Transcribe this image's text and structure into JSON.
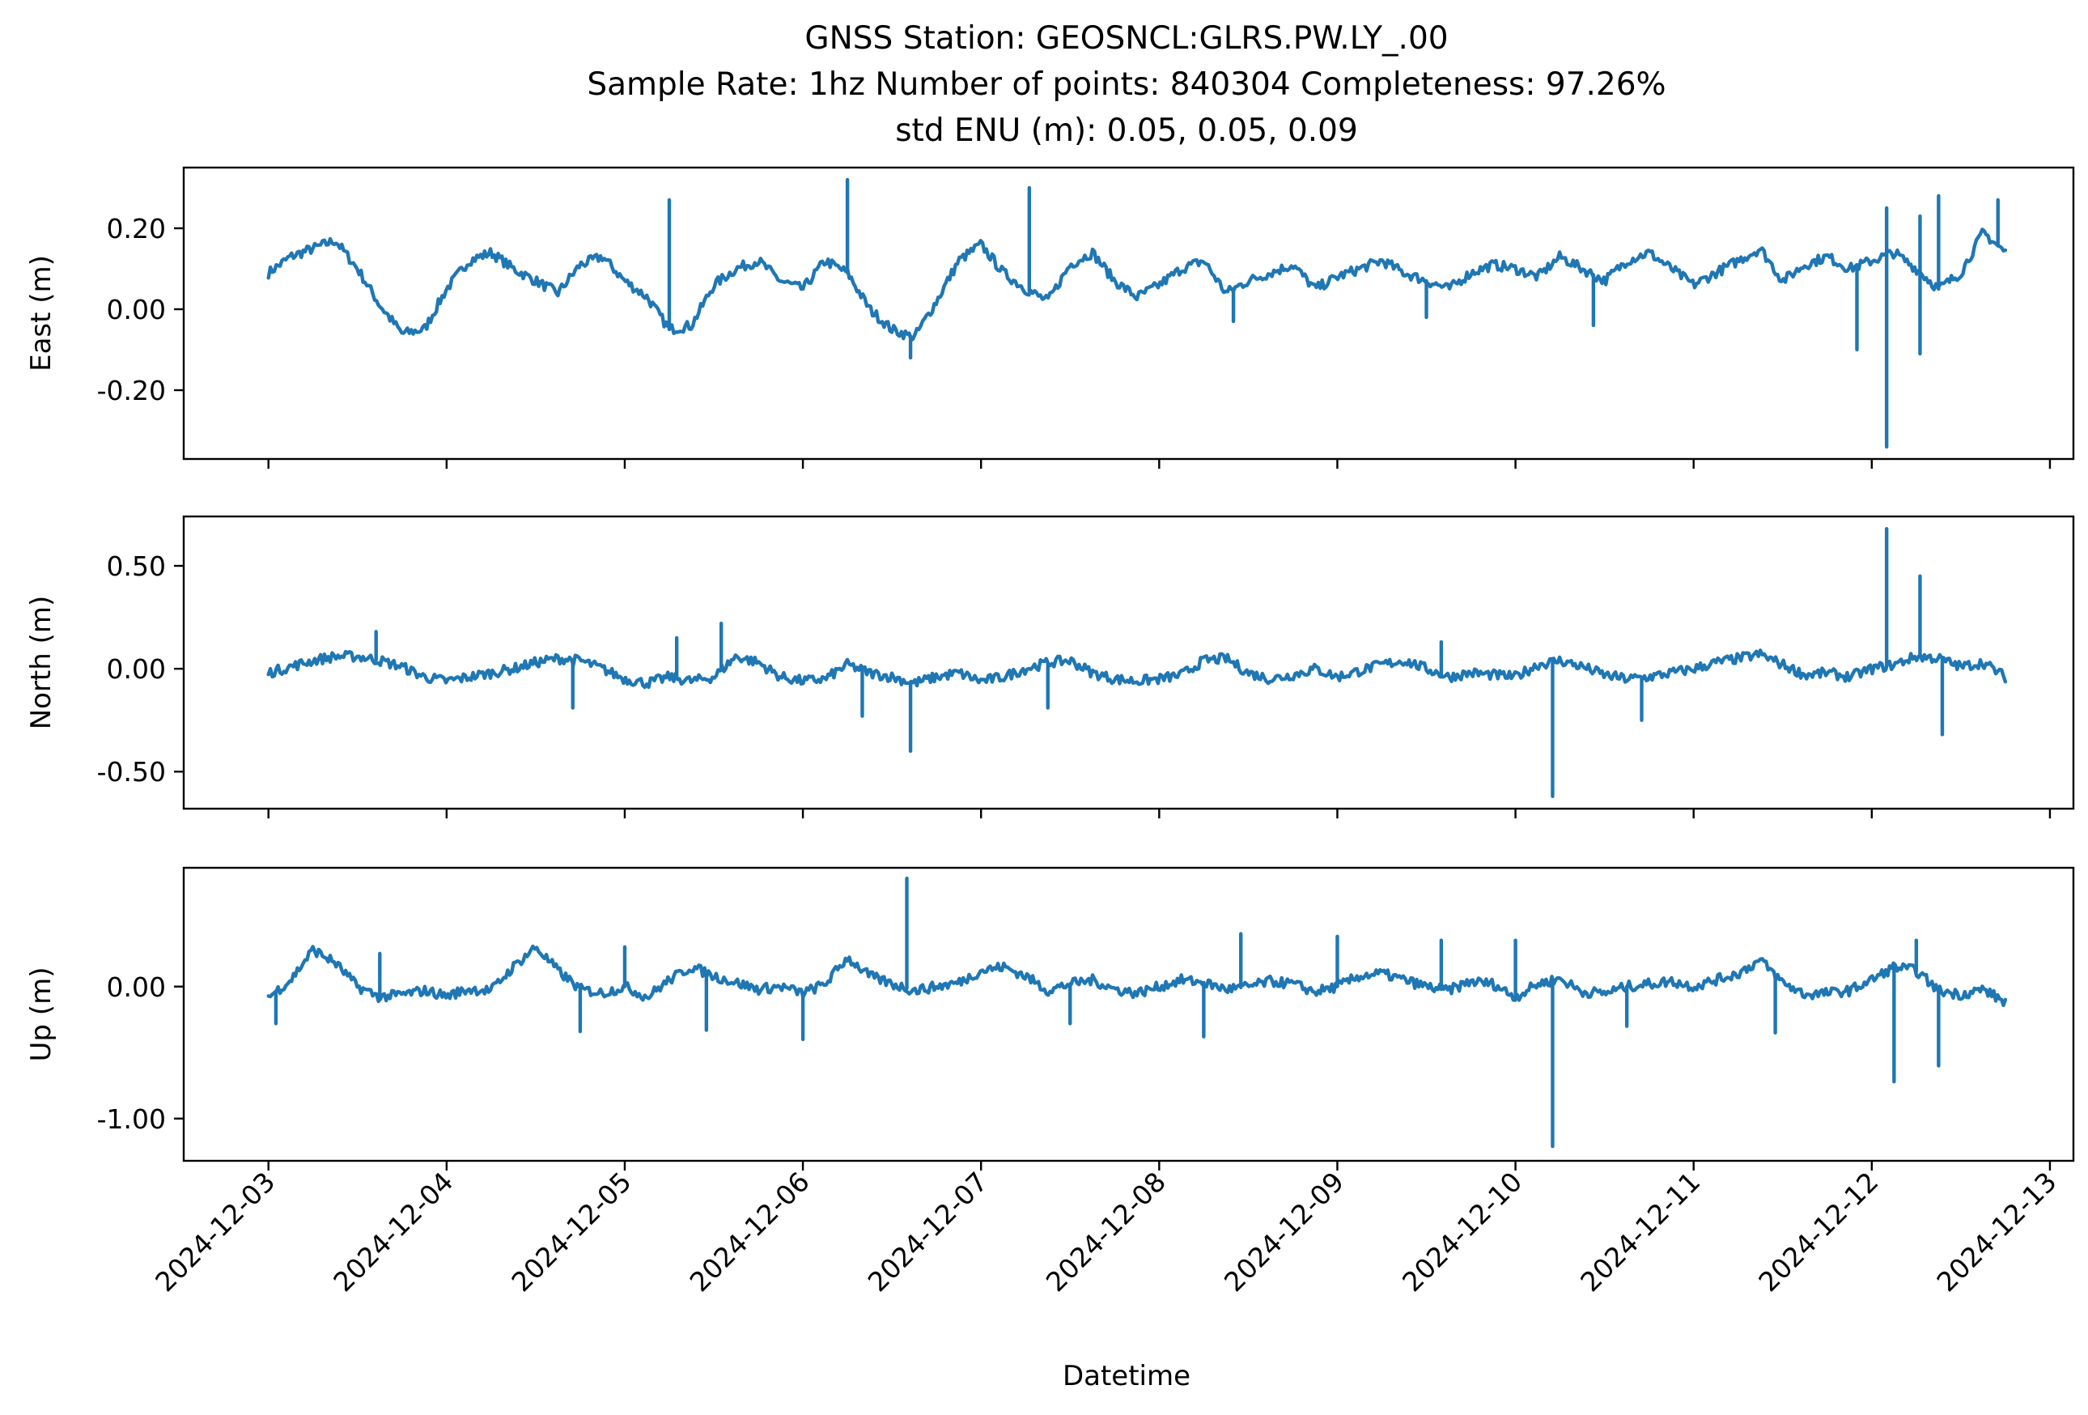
{
  "chart_data": [
    {
      "type": "line",
      "title": [
        "GNSS Station: GEOSNCL:GLRS.PW.LY_.00",
        "Sample Rate: 1hz   Number of points: 840304    Completeness:  97.26%",
        "std ENU (m):  0.05, 0.05, 0.09"
      ],
      "ylabel": "East (m)",
      "xlabel": "",
      "xlim": [
        "2024-12-02T12:35",
        "2024-12-13T03:10"
      ],
      "ylim": [
        -0.37,
        0.35
      ],
      "yticks": [
        0.2,
        0.0,
        -0.2
      ],
      "ytick_labels": [
        "0.20",
        "0.00",
        "-0.20"
      ],
      "grid": false,
      "series": [
        {
          "color": "#1f77b4",
          "x": [
            "2024-12-03T00:00",
            "2024-12-03T03:00",
            "2024-12-03T06:00",
            "2024-12-03T09:00",
            "2024-12-03T12:00",
            "2024-12-03T15:00",
            "2024-12-03T18:00",
            "2024-12-03T21:00",
            "2024-12-04T00:00",
            "2024-12-04T03:00",
            "2024-12-04T06:00",
            "2024-12-04T09:00",
            "2024-12-04T12:00",
            "2024-12-04T15:00",
            "2024-12-04T18:00",
            "2024-12-04T21:00",
            "2024-12-05T00:00",
            "2024-12-05T03:00",
            "2024-12-05T06:00",
            "2024-12-05T09:00",
            "2024-12-05T12:00",
            "2024-12-05T15:00",
            "2024-12-05T18:00",
            "2024-12-05T21:00",
            "2024-12-06T00:00",
            "2024-12-06T03:00",
            "2024-12-06T06:00",
            "2024-12-06T09:00",
            "2024-12-06T12:00",
            "2024-12-06T15:00",
            "2024-12-06T18:00",
            "2024-12-06T21:00",
            "2024-12-07T00:00",
            "2024-12-07T03:00",
            "2024-12-07T06:00",
            "2024-12-07T09:00",
            "2024-12-07T12:00",
            "2024-12-07T15:00",
            "2024-12-07T18:00",
            "2024-12-07T21:00",
            "2024-12-08T00:00",
            "2024-12-08T03:00",
            "2024-12-08T06:00",
            "2024-12-08T09:00",
            "2024-12-08T12:00",
            "2024-12-08T15:00",
            "2024-12-08T18:00",
            "2024-12-08T21:00",
            "2024-12-09T00:00",
            "2024-12-09T03:00",
            "2024-12-09T06:00",
            "2024-12-09T09:00",
            "2024-12-09T12:00",
            "2024-12-09T15:00",
            "2024-12-09T18:00",
            "2024-12-09T21:00",
            "2024-12-10T00:00",
            "2024-12-10T03:00",
            "2024-12-10T06:00",
            "2024-12-10T09:00",
            "2024-12-10T12:00",
            "2024-12-10T15:00",
            "2024-12-10T18:00",
            "2024-12-10T21:00",
            "2024-12-11T00:00",
            "2024-12-11T03:00",
            "2024-12-11T06:00",
            "2024-12-11T09:00",
            "2024-12-11T12:00",
            "2024-12-11T15:00",
            "2024-12-11T18:00",
            "2024-12-11T21:00",
            "2024-12-12T00:00",
            "2024-12-12T03:00",
            "2024-12-12T06:00",
            "2024-12-12T09:00",
            "2024-12-12T12:00",
            "2024-12-12T15:00",
            "2024-12-12T18:00"
          ],
          "y": [
            0.09,
            0.13,
            0.15,
            0.17,
            0.1,
            0.01,
            -0.06,
            -0.05,
            0.05,
            0.12,
            0.14,
            0.1,
            0.07,
            0.04,
            0.11,
            0.13,
            0.07,
            0.03,
            -0.05,
            -0.04,
            0.06,
            0.1,
            0.12,
            0.07,
            0.05,
            0.12,
            0.09,
            0.0,
            -0.05,
            -0.07,
            0.02,
            0.12,
            0.16,
            0.09,
            0.05,
            0.02,
            0.11,
            0.14,
            0.07,
            0.03,
            0.06,
            0.1,
            0.12,
            0.04,
            0.07,
            0.09,
            0.11,
            0.05,
            0.08,
            0.1,
            0.12,
            0.09,
            0.07,
            0.05,
            0.09,
            0.11,
            0.1,
            0.08,
            0.13,
            0.1,
            0.07,
            0.12,
            0.14,
            0.1,
            0.06,
            0.09,
            0.12,
            0.15,
            0.07,
            0.11,
            0.13,
            0.1,
            0.12,
            0.14,
            0.1,
            0.05,
            0.09,
            0.19,
            0.14
          ],
          "spikes": [
            {
              "x": "2024-12-05T06:00",
              "y": 0.27
            },
            {
              "x": "2024-12-06T06:00",
              "y": 0.32
            },
            {
              "x": "2024-12-06T14:30",
              "y": -0.12
            },
            {
              "x": "2024-12-07T06:30",
              "y": 0.3
            },
            {
              "x": "2024-12-08T10:00",
              "y": -0.03
            },
            {
              "x": "2024-12-09T12:00",
              "y": -0.02
            },
            {
              "x": "2024-12-10T10:30",
              "y": -0.04
            },
            {
              "x": "2024-12-11T22:00",
              "y": -0.1
            },
            {
              "x": "2024-12-12T02:00",
              "y": -0.34
            },
            {
              "x": "2024-12-12T02:00",
              "y": 0.25
            },
            {
              "x": "2024-12-12T06:30",
              "y": -0.11
            },
            {
              "x": "2024-12-12T06:30",
              "y": 0.23
            },
            {
              "x": "2024-12-12T09:00",
              "y": 0.28
            },
            {
              "x": "2024-12-12T17:00",
              "y": 0.27
            }
          ]
        }
      ]
    },
    {
      "type": "line",
      "ylabel": "North (m)",
      "xlabel": "",
      "xlim": [
        "2024-12-02T12:35",
        "2024-12-13T03:10"
      ],
      "ylim": [
        -0.68,
        0.74
      ],
      "yticks": [
        0.5,
        0.0,
        -0.5
      ],
      "ytick_labels": [
        "0.50",
        "0.00",
        "-0.50"
      ],
      "grid": false,
      "series": [
        {
          "color": "#1f77b4",
          "x": [
            "2024-12-03T00:00",
            "2024-12-03T03:00",
            "2024-12-03T06:00",
            "2024-12-03T09:00",
            "2024-12-03T12:00",
            "2024-12-03T15:00",
            "2024-12-03T18:00",
            "2024-12-03T21:00",
            "2024-12-04T00:00",
            "2024-12-04T03:00",
            "2024-12-04T06:00",
            "2024-12-04T09:00",
            "2024-12-04T12:00",
            "2024-12-04T15:00",
            "2024-12-04T18:00",
            "2024-12-04T21:00",
            "2024-12-05T00:00",
            "2024-12-05T03:00",
            "2024-12-05T06:00",
            "2024-12-05T09:00",
            "2024-12-05T12:00",
            "2024-12-05T15:00",
            "2024-12-05T18:00",
            "2024-12-05T21:00",
            "2024-12-06T00:00",
            "2024-12-06T03:00",
            "2024-12-06T06:00",
            "2024-12-06T09:00",
            "2024-12-06T12:00",
            "2024-12-06T15:00",
            "2024-12-06T18:00",
            "2024-12-06T21:00",
            "2024-12-07T00:00",
            "2024-12-07T03:00",
            "2024-12-07T06:00",
            "2024-12-07T09:00",
            "2024-12-07T12:00",
            "2024-12-07T15:00",
            "2024-12-07T18:00",
            "2024-12-07T21:00",
            "2024-12-08T00:00",
            "2024-12-08T03:00",
            "2024-12-08T06:00",
            "2024-12-08T09:00",
            "2024-12-08T12:00",
            "2024-12-08T15:00",
            "2024-12-08T18:00",
            "2024-12-08T21:00",
            "2024-12-09T00:00",
            "2024-12-09T03:00",
            "2024-12-09T06:00",
            "2024-12-09T09:00",
            "2024-12-09T12:00",
            "2024-12-09T15:00",
            "2024-12-09T18:00",
            "2024-12-09T21:00",
            "2024-12-10T00:00",
            "2024-12-10T03:00",
            "2024-12-10T06:00",
            "2024-12-10T09:00",
            "2024-12-10T12:00",
            "2024-12-10T15:00",
            "2024-12-10T18:00",
            "2024-12-10T21:00",
            "2024-12-11T00:00",
            "2024-12-11T03:00",
            "2024-12-11T06:00",
            "2024-12-11T09:00",
            "2024-12-11T12:00",
            "2024-12-11T15:00",
            "2024-12-11T18:00",
            "2024-12-11T21:00",
            "2024-12-12T00:00",
            "2024-12-12T03:00",
            "2024-12-12T06:00",
            "2024-12-12T09:00",
            "2024-12-12T12:00",
            "2024-12-12T15:00",
            "2024-12-12T18:00"
          ],
          "y": [
            -0.02,
            0.01,
            0.04,
            0.06,
            0.06,
            0.04,
            0.01,
            -0.04,
            -0.06,
            -0.04,
            -0.02,
            0.0,
            0.03,
            0.05,
            0.04,
            0.0,
            -0.05,
            -0.07,
            -0.04,
            -0.06,
            -0.04,
            0.06,
            0.03,
            -0.04,
            -0.06,
            -0.05,
            0.02,
            -0.02,
            -0.04,
            -0.07,
            -0.04,
            -0.02,
            -0.06,
            -0.04,
            0.0,
            0.03,
            0.04,
            -0.02,
            -0.05,
            -0.06,
            -0.05,
            -0.03,
            0.04,
            0.05,
            -0.02,
            -0.05,
            -0.03,
            0.0,
            -0.04,
            -0.01,
            0.02,
            0.04,
            0.0,
            -0.04,
            -0.02,
            -0.03,
            -0.04,
            0.02,
            0.04,
            0.01,
            -0.03,
            -0.05,
            -0.04,
            -0.02,
            0.0,
            0.03,
            0.05,
            0.07,
            0.02,
            -0.03,
            -0.02,
            -0.04,
            0.0,
            0.02,
            0.06,
            0.05,
            0.01,
            0.03,
            -0.04
          ],
          "spikes": [
            {
              "x": "2024-12-03T14:30",
              "y": 0.18
            },
            {
              "x": "2024-12-04T17:00",
              "y": -0.19
            },
            {
              "x": "2024-12-05T07:00",
              "y": 0.15
            },
            {
              "x": "2024-12-05T13:00",
              "y": 0.22
            },
            {
              "x": "2024-12-06T08:00",
              "y": -0.23
            },
            {
              "x": "2024-12-06T14:30",
              "y": -0.4
            },
            {
              "x": "2024-12-07T09:00",
              "y": -0.19
            },
            {
              "x": "2024-12-09T14:00",
              "y": 0.13
            },
            {
              "x": "2024-12-10T05:00",
              "y": -0.62
            },
            {
              "x": "2024-12-10T17:00",
              "y": -0.25
            },
            {
              "x": "2024-12-12T02:00",
              "y": 0.68
            },
            {
              "x": "2024-12-12T06:30",
              "y": 0.45
            },
            {
              "x": "2024-12-12T09:30",
              "y": -0.32
            }
          ]
        }
      ]
    },
    {
      "type": "line",
      "ylabel": "Up (m)",
      "xlabel": "Datetime",
      "xlim": [
        "2024-12-02T12:35",
        "2024-12-13T03:10"
      ],
      "ylim": [
        -1.32,
        0.9
      ],
      "yticks": [
        0.0,
        -1.0
      ],
      "ytick_labels": [
        "0.00",
        "-1.00"
      ],
      "xtick_labels": [
        "2024-12-03",
        "2024-12-04",
        "2024-12-05",
        "2024-12-06",
        "2024-12-07",
        "2024-12-08",
        "2024-12-09",
        "2024-12-10",
        "2024-12-11",
        "2024-12-12",
        "2024-12-13"
      ],
      "grid": false,
      "series": [
        {
          "color": "#1f77b4",
          "x": [
            "2024-12-03T00:00",
            "2024-12-03T03:00",
            "2024-12-03T06:00",
            "2024-12-03T09:00",
            "2024-12-03T12:00",
            "2024-12-03T15:00",
            "2024-12-03T18:00",
            "2024-12-03T21:00",
            "2024-12-04T00:00",
            "2024-12-04T03:00",
            "2024-12-04T06:00",
            "2024-12-04T09:00",
            "2024-12-04T12:00",
            "2024-12-04T15:00",
            "2024-12-04T18:00",
            "2024-12-04T21:00",
            "2024-12-05T00:00",
            "2024-12-05T03:00",
            "2024-12-05T06:00",
            "2024-12-05T09:00",
            "2024-12-05T12:00",
            "2024-12-05T15:00",
            "2024-12-05T18:00",
            "2024-12-05T21:00",
            "2024-12-06T00:00",
            "2024-12-06T03:00",
            "2024-12-06T06:00",
            "2024-12-06T09:00",
            "2024-12-06T12:00",
            "2024-12-06T15:00",
            "2024-12-06T18:00",
            "2024-12-06T21:00",
            "2024-12-07T00:00",
            "2024-12-07T03:00",
            "2024-12-07T06:00",
            "2024-12-07T09:00",
            "2024-12-07T12:00",
            "2024-12-07T15:00",
            "2024-12-07T18:00",
            "2024-12-07T21:00",
            "2024-12-08T00:00",
            "2024-12-08T03:00",
            "2024-12-08T06:00",
            "2024-12-08T09:00",
            "2024-12-08T12:00",
            "2024-12-08T15:00",
            "2024-12-08T18:00",
            "2024-12-08T21:00",
            "2024-12-09T00:00",
            "2024-12-09T03:00",
            "2024-12-09T06:00",
            "2024-12-09T09:00",
            "2024-12-09T12:00",
            "2024-12-09T15:00",
            "2024-12-09T18:00",
            "2024-12-09T21:00",
            "2024-12-10T00:00",
            "2024-12-10T03:00",
            "2024-12-10T06:00",
            "2024-12-10T09:00",
            "2024-12-10T12:00",
            "2024-12-10T15:00",
            "2024-12-10T18:00",
            "2024-12-10T21:00",
            "2024-12-11T00:00",
            "2024-12-11T03:00",
            "2024-12-11T06:00",
            "2024-12-11T09:00",
            "2024-12-11T12:00",
            "2024-12-11T15:00",
            "2024-12-11T18:00",
            "2024-12-11T21:00",
            "2024-12-12T00:00",
            "2024-12-12T03:00",
            "2024-12-12T06:00",
            "2024-12-12T09:00",
            "2024-12-12T12:00",
            "2024-12-12T15:00",
            "2024-12-12T18:00"
          ],
          "y": [
            -0.08,
            0.05,
            0.28,
            0.18,
            0.0,
            -0.08,
            -0.06,
            -0.03,
            -0.07,
            -0.02,
            -0.03,
            0.15,
            0.3,
            0.12,
            -0.02,
            -0.05,
            0.0,
            -0.08,
            0.05,
            0.15,
            0.08,
            0.03,
            -0.02,
            0.0,
            -0.05,
            0.02,
            0.22,
            0.08,
            0.02,
            -0.03,
            0.0,
            0.03,
            0.12,
            0.15,
            0.08,
            -0.03,
            0.02,
            0.05,
            -0.02,
            -0.05,
            0.0,
            0.05,
            0.03,
            -0.02,
            0.0,
            0.04,
            0.02,
            -0.04,
            0.0,
            0.08,
            0.1,
            0.05,
            0.0,
            -0.03,
            0.04,
            0.02,
            -0.08,
            0.02,
            0.06,
            -0.04,
            -0.05,
            0.0,
            0.02,
            0.04,
            0.0,
            0.05,
            0.1,
            0.2,
            0.03,
            -0.06,
            -0.05,
            -0.03,
            0.05,
            0.15,
            0.12,
            -0.03,
            -0.06,
            -0.02,
            -0.12
          ],
          "spikes": [
            {
              "x": "2024-12-03T01:00",
              "y": -0.28
            },
            {
              "x": "2024-12-03T15:00",
              "y": 0.25
            },
            {
              "x": "2024-12-04T18:00",
              "y": -0.34
            },
            {
              "x": "2024-12-05T00:00",
              "y": 0.3
            },
            {
              "x": "2024-12-05T11:00",
              "y": -0.33
            },
            {
              "x": "2024-12-06T00:00",
              "y": -0.4
            },
            {
              "x": "2024-12-06T14:00",
              "y": 0.82
            },
            {
              "x": "2024-12-07T12:00",
              "y": -0.28
            },
            {
              "x": "2024-12-08T06:00",
              "y": -0.38
            },
            {
              "x": "2024-12-08T11:00",
              "y": 0.4
            },
            {
              "x": "2024-12-09T00:00",
              "y": 0.38
            },
            {
              "x": "2024-12-09T14:00",
              "y": 0.35
            },
            {
              "x": "2024-12-10T00:00",
              "y": 0.35
            },
            {
              "x": "2024-12-10T05:00",
              "y": -1.21
            },
            {
              "x": "2024-12-10T15:00",
              "y": -0.3
            },
            {
              "x": "2024-12-11T11:00",
              "y": -0.35
            },
            {
              "x": "2024-12-12T03:00",
              "y": -0.72
            },
            {
              "x": "2024-12-12T06:00",
              "y": 0.35
            },
            {
              "x": "2024-12-12T09:00",
              "y": -0.6
            }
          ]
        }
      ]
    }
  ]
}
